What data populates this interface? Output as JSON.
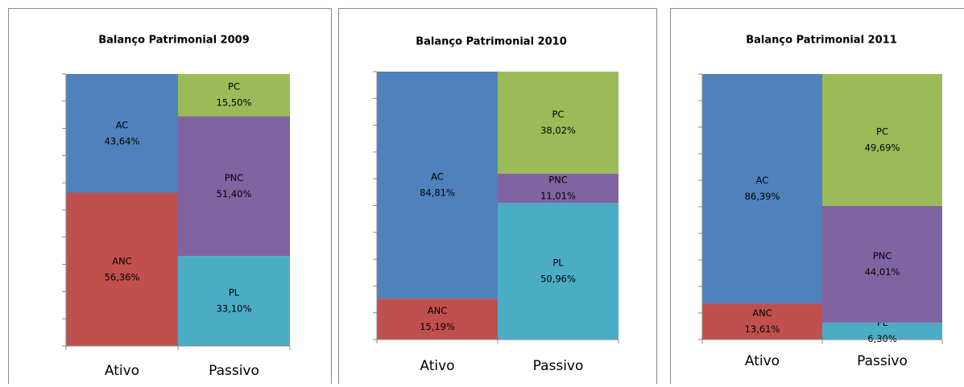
{
  "chart_data": [
    {
      "type": "bar",
      "stacked": true,
      "title": "Balanço Patrimonial 2009",
      "categories": [
        "Ativo",
        "Passivo"
      ],
      "ylim": [
        0,
        100
      ],
      "yticks": [
        0,
        10,
        20,
        30,
        40,
        50,
        60,
        70,
        80,
        90,
        100
      ],
      "series": [
        {
          "name": "ANC",
          "color": "#c0504d",
          "values": [
            56.36,
            null
          ],
          "value_labels": [
            "56,36%",
            null
          ]
        },
        {
          "name": "AC",
          "color": "#4f81bd",
          "values": [
            43.64,
            null
          ],
          "value_labels": [
            "43,64%",
            null
          ]
        },
        {
          "name": "PL",
          "color": "#4bacc6",
          "values": [
            null,
            33.1
          ],
          "value_labels": [
            null,
            "33,10%"
          ]
        },
        {
          "name": "PNC",
          "color": "#8064a2",
          "values": [
            null,
            51.4
          ],
          "value_labels": [
            null,
            "51,40%"
          ]
        },
        {
          "name": "PC",
          "color": "#9bbb59",
          "values": [
            null,
            15.5
          ],
          "value_labels": [
            null,
            "15,50%"
          ]
        }
      ]
    },
    {
      "type": "bar",
      "stacked": true,
      "title": "Balanço Patrimonial 2010",
      "categories": [
        "Ativo",
        "Passivo"
      ],
      "ylim": [
        0,
        100
      ],
      "yticks": [
        0,
        10,
        20,
        30,
        40,
        50,
        60,
        70,
        80,
        90,
        100
      ],
      "series": [
        {
          "name": "ANC",
          "color": "#c0504d",
          "values": [
            15.19,
            null
          ],
          "value_labels": [
            "15,19%",
            null
          ]
        },
        {
          "name": "AC",
          "color": "#4f81bd",
          "values": [
            84.81,
            null
          ],
          "value_labels": [
            "84,81%",
            null
          ]
        },
        {
          "name": "PL",
          "color": "#4bacc6",
          "values": [
            null,
            50.96
          ],
          "value_labels": [
            null,
            "50,96%"
          ]
        },
        {
          "name": "PNC",
          "color": "#8064a2",
          "values": [
            null,
            11.01
          ],
          "value_labels": [
            null,
            "11,01%"
          ]
        },
        {
          "name": "PC",
          "color": "#9bbb59",
          "values": [
            null,
            38.02
          ],
          "value_labels": [
            null,
            "38,02%"
          ]
        }
      ]
    },
    {
      "type": "bar",
      "stacked": true,
      "title": "Balanço Patrimonial 2011",
      "categories": [
        "Ativo",
        "Passivo"
      ],
      "ylim": [
        0,
        100
      ],
      "yticks": [
        0,
        10,
        20,
        30,
        40,
        50,
        60,
        70,
        80,
        90,
        100
      ],
      "series": [
        {
          "name": "ANC",
          "color": "#c0504d",
          "values": [
            13.61,
            null
          ],
          "value_labels": [
            "13,61%",
            null
          ]
        },
        {
          "name": "AC",
          "color": "#4f81bd",
          "values": [
            86.39,
            null
          ],
          "value_labels": [
            "86,39%",
            null
          ]
        },
        {
          "name": "PL",
          "color": "#4bacc6",
          "values": [
            null,
            6.3
          ],
          "value_labels": [
            null,
            "6,30%"
          ]
        },
        {
          "name": "PNC",
          "color": "#8064a2",
          "values": [
            null,
            44.01
          ],
          "value_labels": [
            null,
            "44,01%"
          ]
        },
        {
          "name": "PC",
          "color": "#9bbb59",
          "values": [
            null,
            49.69
          ],
          "value_labels": [
            null,
            "49,69%"
          ]
        }
      ]
    }
  ]
}
